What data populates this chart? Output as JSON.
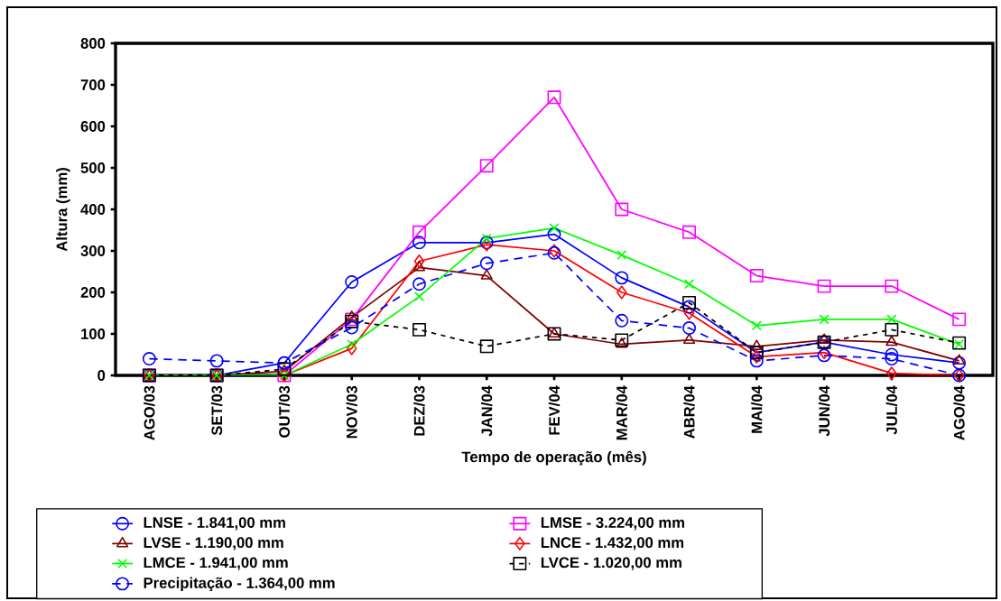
{
  "chart_data": {
    "type": "line",
    "xlabel": "Tempo de operação (mês)",
    "ylabel": "Altura (mm)",
    "categories": [
      "AGO/03",
      "SET/03",
      "OUT/03",
      "NOV/03",
      "DEZ/03",
      "JAN/04",
      "FEV/04",
      "MAR/04",
      "ABR/04",
      "MAI/04",
      "JUN/04",
      "JUL/04",
      "AGO/04"
    ],
    "ylim": [
      0,
      800
    ],
    "yticks": [
      0,
      100,
      200,
      300,
      400,
      500,
      600,
      700,
      800
    ],
    "grid": false,
    "legend": "bottom",
    "series": [
      {
        "name": "LNSE - 1.841,00 mm",
        "color": "#0000ff",
        "marker": "circle",
        "line_style": "solid",
        "values": [
          0,
          0,
          30,
          225,
          320,
          320,
          340,
          235,
          165,
          55,
          80,
          50,
          30
        ]
      },
      {
        "name": "LMSE - 3.224,00 mm",
        "color": "#ff00ff",
        "marker": "square",
        "line_style": "solid",
        "values": [
          0,
          0,
          0,
          135,
          345,
          505,
          670,
          400,
          345,
          240,
          215,
          215,
          135
        ]
      },
      {
        "name": "LVSE - 1.190,00 mm",
        "color": "#800000",
        "marker": "triangle",
        "line_style": "solid",
        "values": [
          0,
          0,
          10,
          140,
          260,
          240,
          100,
          75,
          85,
          70,
          85,
          80,
          35
        ]
      },
      {
        "name": "LNCE - 1.432,00 mm",
        "color": "#ff0000",
        "marker": "diamond",
        "line_style": "solid",
        "values": [
          0,
          0,
          0,
          65,
          275,
          315,
          300,
          200,
          150,
          45,
          55,
          5,
          0
        ]
      },
      {
        "name": "LMCE - 1.941,00 mm",
        "color": "#00ff00",
        "marker": "cross",
        "line_style": "solid",
        "values": [
          0,
          0,
          0,
          75,
          190,
          330,
          355,
          290,
          220,
          120,
          135,
          135,
          75
        ]
      },
      {
        "name": "LVCE - 1.020,00 mm",
        "color": "#000000",
        "marker": "square",
        "line_style": "dotted",
        "values": [
          0,
          0,
          15,
          130,
          110,
          70,
          100,
          85,
          175,
          55,
          80,
          110,
          78
        ]
      },
      {
        "name": "Precipitação - 1.364,00 mm",
        "color": "#0000ff",
        "marker": "circle",
        "line_style": "dashed",
        "values": [
          40,
          35,
          30,
          115,
          220,
          270,
          295,
          132,
          114,
          35,
          48,
          40,
          0
        ]
      }
    ]
  }
}
